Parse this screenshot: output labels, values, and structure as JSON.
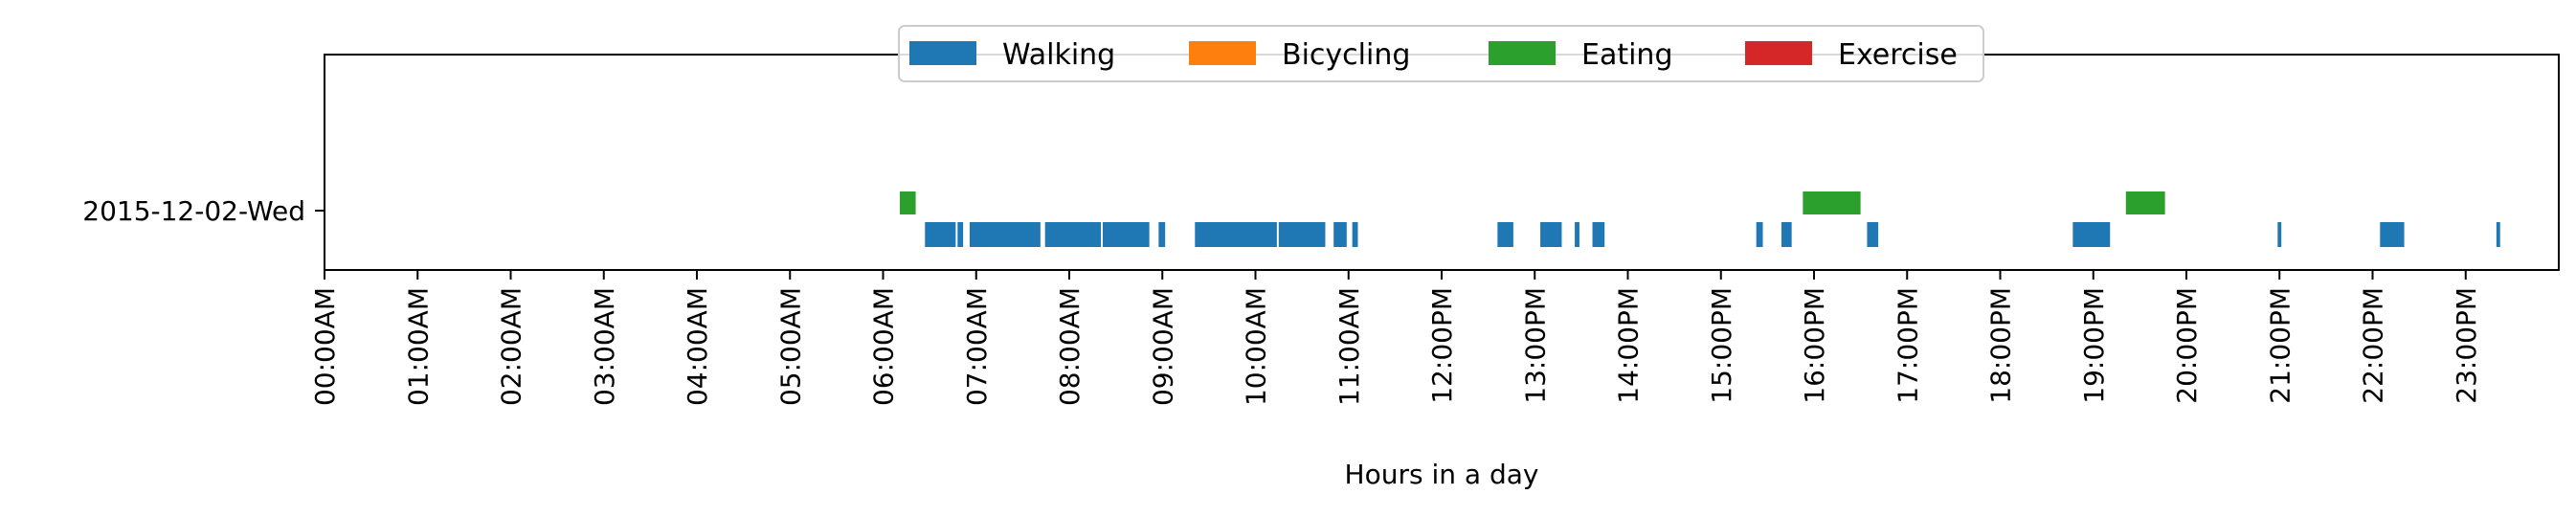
{
  "chart_data": {
    "type": "timeline",
    "xlabel": "Hours in a day",
    "xlim": [
      0,
      24
    ],
    "x_ticks": [
      "00:00AM",
      "01:00AM",
      "02:00AM",
      "03:00AM",
      "04:00AM",
      "05:00AM",
      "06:00AM",
      "07:00AM",
      "08:00AM",
      "09:00AM",
      "10:00AM",
      "11:00AM",
      "12:00PM",
      "13:00PM",
      "14:00PM",
      "15:00PM",
      "16:00PM",
      "17:00PM",
      "18:00PM",
      "19:00PM",
      "20:00PM",
      "21:00PM",
      "22:00PM",
      "23:00PM"
    ],
    "rows": [
      "2015-12-02-Wed"
    ],
    "legend_position": "top-center",
    "legend": [
      {
        "name": "Walking",
        "color": "#1f77b4"
      },
      {
        "name": "Bicycling",
        "color": "#ff7f0e"
      },
      {
        "name": "Eating",
        "color": "#2ca02c"
      },
      {
        "name": "Exercise",
        "color": "#d62728"
      }
    ],
    "series": [
      {
        "name": "Walking",
        "intervals": [
          [
            6.45,
            6.78
          ],
          [
            6.8,
            6.86
          ],
          [
            6.93,
            7.69
          ],
          [
            7.74,
            8.34
          ],
          [
            8.36,
            8.86
          ],
          [
            8.96,
            9.03
          ],
          [
            9.35,
            10.23
          ],
          [
            10.25,
            10.75
          ],
          [
            10.84,
            10.98
          ],
          [
            11.04,
            11.1
          ],
          [
            12.6,
            12.77
          ],
          [
            13.06,
            13.29
          ],
          [
            13.43,
            13.48
          ],
          [
            13.62,
            13.75
          ],
          [
            15.38,
            15.45
          ],
          [
            15.65,
            15.76
          ],
          [
            16.57,
            16.69
          ],
          [
            18.78,
            19.18
          ],
          [
            20.98,
            21.02
          ],
          [
            22.08,
            22.34
          ],
          [
            23.33,
            23.37
          ]
        ]
      },
      {
        "name": "Bicycling",
        "intervals": []
      },
      {
        "name": "Eating",
        "intervals": [
          [
            6.18,
            6.35
          ],
          [
            15.88,
            16.5
          ],
          [
            19.35,
            19.77
          ]
        ]
      },
      {
        "name": "Exercise",
        "intervals": []
      }
    ]
  }
}
